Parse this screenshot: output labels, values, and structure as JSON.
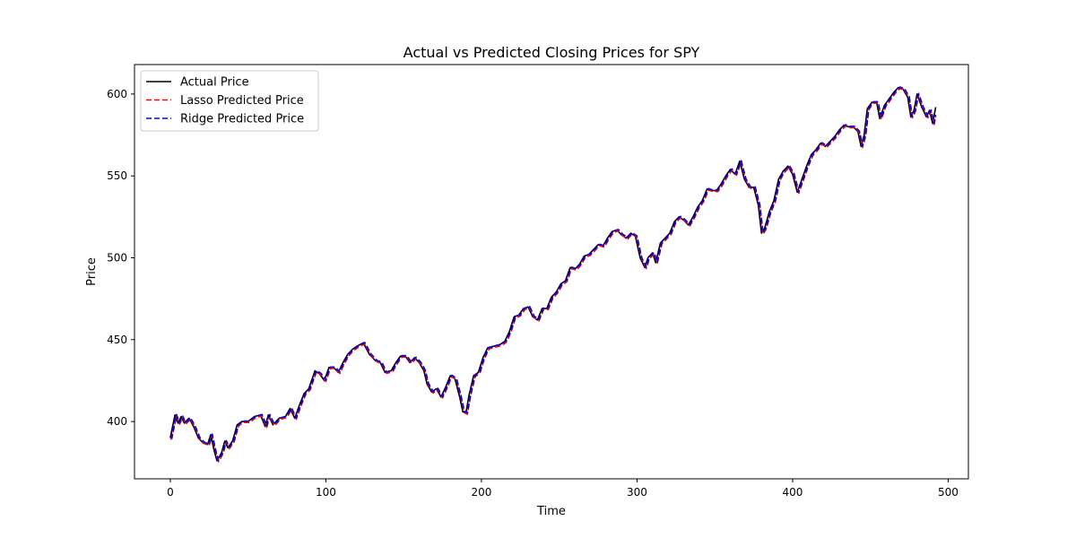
{
  "chart_data": {
    "type": "line",
    "title": "Actual vs Predicted Closing Prices for SPY",
    "xlabel": "Time",
    "ylabel": "Price",
    "xlim": [
      -23,
      513
    ],
    "ylim": [
      365,
      618
    ],
    "xticks": [
      0,
      100,
      200,
      300,
      400,
      500
    ],
    "yticks": [
      400,
      450,
      500,
      550,
      600
    ],
    "grid": false,
    "legend_position": "top-left",
    "anchors": [
      [
        0,
        390
      ],
      [
        3,
        404
      ],
      [
        5,
        399
      ],
      [
        7,
        403
      ],
      [
        9,
        399
      ],
      [
        12,
        402
      ],
      [
        15,
        397
      ],
      [
        18,
        390
      ],
      [
        21,
        387
      ],
      [
        24,
        386
      ],
      [
        26,
        392
      ],
      [
        28,
        383
      ],
      [
        30,
        376
      ],
      [
        33,
        381
      ],
      [
        35,
        388
      ],
      [
        37,
        384
      ],
      [
        40,
        388
      ],
      [
        43,
        398
      ],
      [
        46,
        400
      ],
      [
        50,
        400
      ],
      [
        54,
        403
      ],
      [
        58,
        404
      ],
      [
        61,
        397
      ],
      [
        63,
        404
      ],
      [
        66,
        398
      ],
      [
        70,
        402
      ],
      [
        74,
        403
      ],
      [
        77,
        408
      ],
      [
        80,
        402
      ],
      [
        83,
        410
      ],
      [
        86,
        417
      ],
      [
        89,
        420
      ],
      [
        93,
        431
      ],
      [
        96,
        429
      ],
      [
        99,
        425
      ],
      [
        102,
        433
      ],
      [
        105,
        433
      ],
      [
        108,
        430
      ],
      [
        111,
        436
      ],
      [
        114,
        441
      ],
      [
        117,
        444
      ],
      [
        120,
        446
      ],
      [
        124,
        448
      ],
      [
        128,
        441
      ],
      [
        132,
        437
      ],
      [
        135,
        436
      ],
      [
        138,
        430
      ],
      [
        142,
        431
      ],
      [
        145,
        436
      ],
      [
        148,
        440
      ],
      [
        151,
        440
      ],
      [
        154,
        436
      ],
      [
        157,
        439
      ],
      [
        160,
        436
      ],
      [
        163,
        431
      ],
      [
        165,
        423
      ],
      [
        168,
        418
      ],
      [
        171,
        420
      ],
      [
        174,
        415
      ],
      [
        177,
        421
      ],
      [
        180,
        428
      ],
      [
        183,
        426
      ],
      [
        186,
        415
      ],
      [
        188,
        406
      ],
      [
        190,
        405
      ],
      [
        192,
        416
      ],
      [
        195,
        428
      ],
      [
        198,
        430
      ],
      [
        201,
        439
      ],
      [
        204,
        445
      ],
      [
        208,
        446
      ],
      [
        212,
        447
      ],
      [
        215,
        449
      ],
      [
        218,
        455
      ],
      [
        221,
        464
      ],
      [
        224,
        465
      ],
      [
        227,
        469
      ],
      [
        230,
        470
      ],
      [
        233,
        464
      ],
      [
        236,
        462
      ],
      [
        239,
        469
      ],
      [
        242,
        469
      ],
      [
        245,
        476
      ],
      [
        248,
        479
      ],
      [
        251,
        484
      ],
      [
        254,
        486
      ],
      [
        257,
        494
      ],
      [
        260,
        493
      ],
      [
        263,
        496
      ],
      [
        266,
        501
      ],
      [
        269,
        502
      ],
      [
        272,
        505
      ],
      [
        275,
        508
      ],
      [
        278,
        507
      ],
      [
        281,
        512
      ],
      [
        284,
        516
      ],
      [
        287,
        517
      ],
      [
        290,
        514
      ],
      [
        293,
        512
      ],
      [
        296,
        515
      ],
      [
        299,
        513
      ],
      [
        302,
        500
      ],
      [
        305,
        494
      ],
      [
        307,
        500
      ],
      [
        310,
        503
      ],
      [
        312,
        497
      ],
      [
        315,
        509
      ],
      [
        318,
        512
      ],
      [
        321,
        515
      ],
      [
        324,
        522
      ],
      [
        327,
        525
      ],
      [
        330,
        523
      ],
      [
        333,
        520
      ],
      [
        336,
        525
      ],
      [
        339,
        531
      ],
      [
        342,
        535
      ],
      [
        345,
        542
      ],
      [
        348,
        541
      ],
      [
        351,
        541
      ],
      [
        354,
        545
      ],
      [
        357,
        550
      ],
      [
        360,
        554
      ],
      [
        363,
        551
      ],
      [
        366,
        559
      ],
      [
        369,
        548
      ],
      [
        372,
        543
      ],
      [
        375,
        543
      ],
      [
        378,
        532
      ],
      [
        380,
        515
      ],
      [
        382,
        518
      ],
      [
        385,
        528
      ],
      [
        388,
        535
      ],
      [
        391,
        548
      ],
      [
        394,
        553
      ],
      [
        397,
        556
      ],
      [
        400,
        551
      ],
      [
        403,
        540
      ],
      [
        406,
        548
      ],
      [
        409,
        556
      ],
      [
        412,
        563
      ],
      [
        415,
        566
      ],
      [
        418,
        570
      ],
      [
        421,
        568
      ],
      [
        424,
        571
      ],
      [
        427,
        574
      ],
      [
        430,
        578
      ],
      [
        433,
        581
      ],
      [
        436,
        580
      ],
      [
        439,
        580
      ],
      [
        442,
        577
      ],
      [
        444,
        568
      ],
      [
        446,
        575
      ],
      [
        448,
        591
      ],
      [
        451,
        595
      ],
      [
        454,
        595
      ],
      [
        456,
        585
      ],
      [
        459,
        593
      ],
      [
        462,
        597
      ],
      [
        465,
        601
      ],
      [
        468,
        604
      ],
      [
        471,
        603
      ],
      [
        474,
        598
      ],
      [
        476,
        586
      ],
      [
        478,
        590
      ],
      [
        480,
        600
      ],
      [
        483,
        592
      ],
      [
        486,
        586
      ],
      [
        488,
        590
      ],
      [
        490,
        582
      ],
      [
        492,
        592
      ]
    ],
    "series": [
      {
        "name": "Actual Price",
        "color": "#000000",
        "style": "solid",
        "shift": 0,
        "offset": 0.0
      },
      {
        "name": "Lasso Predicted Price",
        "color": "#ff0000",
        "style": "dashed",
        "shift": 1,
        "offset": -0.6
      },
      {
        "name": "Ridge Predicted Price",
        "color": "#0000ff",
        "style": "dashed",
        "shift": 1,
        "offset": 0.3
      }
    ]
  }
}
